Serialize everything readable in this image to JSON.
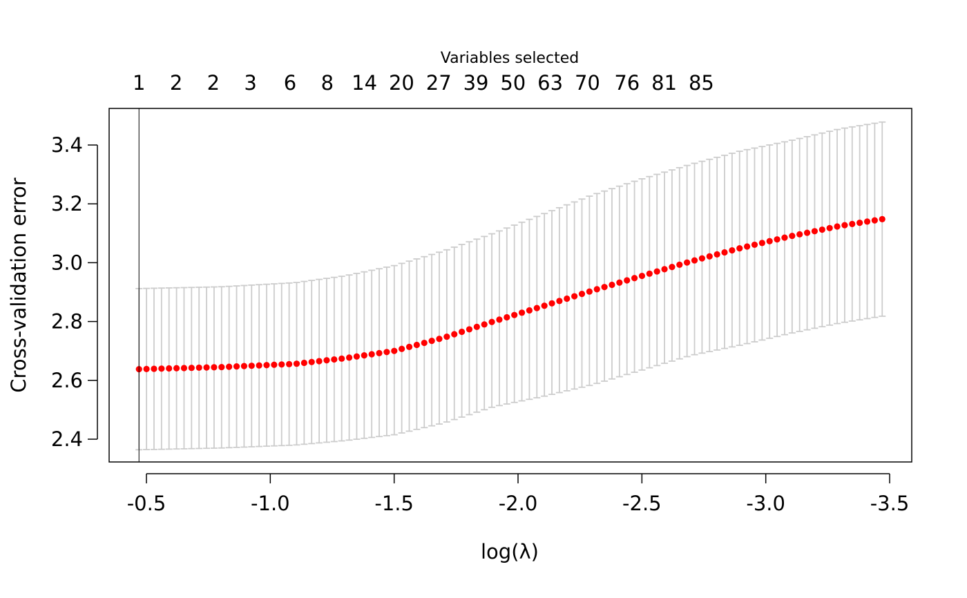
{
  "chart_data": {
    "type": "scatter",
    "title": "",
    "xlabel": "log(λ)",
    "ylabel": "Cross-validation error",
    "top_axis_title": "Variables selected",
    "x_ticks": [
      -0.5,
      -1.0,
      -1.5,
      -2.0,
      -2.5,
      -3.0,
      -3.5
    ],
    "x_tick_labels": [
      "-0.5",
      "-1.0",
      "-1.5",
      "-2.0",
      "-2.5",
      "-3.0",
      "-3.5"
    ],
    "y_ticks": [
      2.4,
      2.6,
      2.8,
      3.0,
      3.2,
      3.4
    ],
    "y_tick_labels": [
      "2.4",
      "2.6",
      "2.8",
      "3.0",
      "3.2",
      "3.4"
    ],
    "top_tick_labels": [
      "1",
      "2",
      "2",
      "3",
      "6",
      "8",
      "14",
      "20",
      "27",
      "39",
      "50",
      "63",
      "70",
      "76",
      "81",
      "85"
    ],
    "top_tick_x": [
      -0.47,
      -0.62,
      -0.77,
      -0.92,
      -1.08,
      -1.23,
      -1.38,
      -1.53,
      -1.68,
      -1.83,
      -1.98,
      -2.13,
      -2.28,
      -2.44,
      -2.59,
      -2.74
    ],
    "xlim": [
      -0.5,
      -3.5
    ],
    "ylim": [
      2.4,
      3.4
    ],
    "points": {
      "x_start": -0.47,
      "x_end": -3.47,
      "count": 100,
      "color": "#ff0000"
    },
    "mean_knots": {
      "x": [
        -0.47,
        -0.8,
        -1.1,
        -1.3,
        -1.5,
        -1.7,
        -1.9,
        -2.1,
        -2.3,
        -2.5,
        -2.7,
        -2.9,
        -3.1,
        -3.3,
        -3.47
      ],
      "y": [
        2.638,
        2.645,
        2.656,
        2.675,
        2.7,
        2.745,
        2.8,
        2.852,
        2.905,
        2.955,
        3.005,
        3.05,
        3.09,
        3.125,
        3.148
      ]
    },
    "upper_knots": {
      "x": [
        -0.47,
        -0.8,
        -1.1,
        -1.3,
        -1.5,
        -1.7,
        -1.9,
        -2.1,
        -2.3,
        -2.5,
        -2.7,
        -2.9,
        -3.1,
        -3.3,
        -3.47
      ],
      "y": [
        2.912,
        2.918,
        2.932,
        2.955,
        2.99,
        3.04,
        3.1,
        3.165,
        3.23,
        3.285,
        3.335,
        3.38,
        3.415,
        3.455,
        3.478
      ]
    },
    "lower_knots": {
      "x": [
        -0.47,
        -0.8,
        -1.1,
        -1.3,
        -1.5,
        -1.7,
        -1.9,
        -2.1,
        -2.3,
        -2.5,
        -2.7,
        -2.9,
        -3.1,
        -3.3,
        -3.47
      ],
      "y": [
        2.364,
        2.37,
        2.38,
        2.395,
        2.415,
        2.455,
        2.51,
        2.545,
        2.585,
        2.635,
        2.685,
        2.72,
        2.76,
        2.795,
        2.818
      ]
    },
    "errorbar_color": "#cccccc",
    "vline_x": -0.47,
    "grid": false
  }
}
